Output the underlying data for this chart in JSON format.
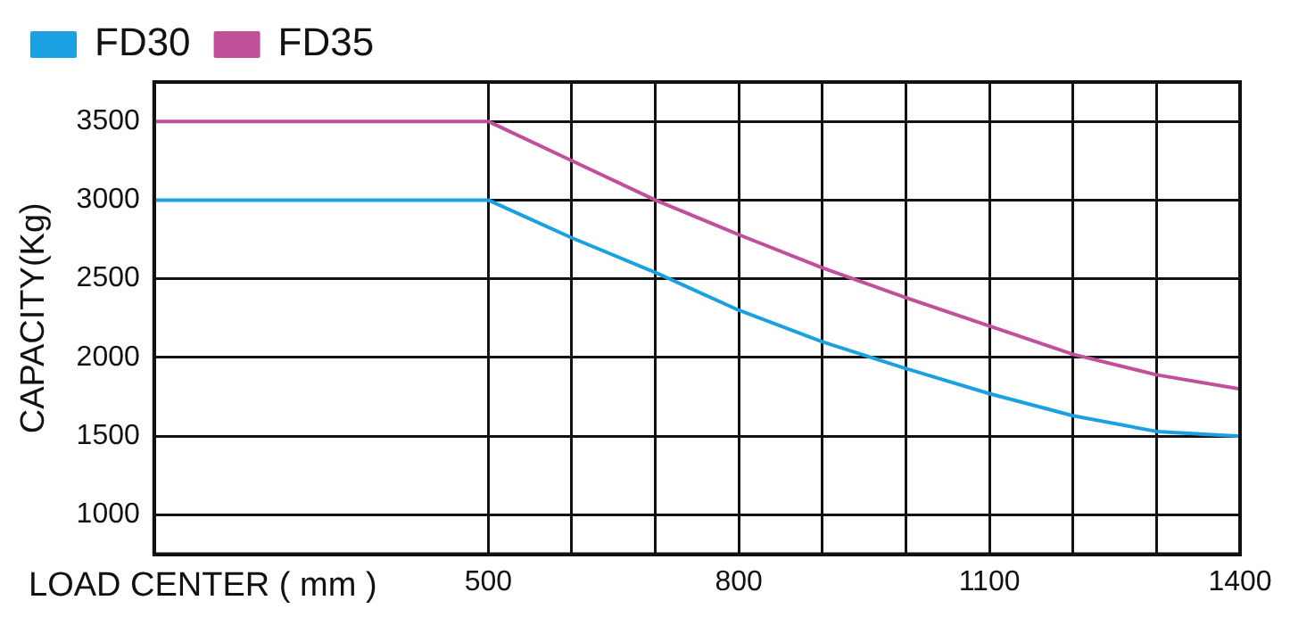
{
  "chart_data": {
    "type": "line",
    "xlabel": "LOAD CENTER ( mm )",
    "ylabel": "CAPACITY(Kg)",
    "x": [
      100,
      500,
      600,
      700,
      800,
      900,
      1000,
      1100,
      1200,
      1300,
      1400
    ],
    "series": [
      {
        "name": "FD30",
        "color": "#1ba1e2",
        "values": [
          3000,
          3000,
          2760,
          2540,
          2300,
          2100,
          1930,
          1770,
          1630,
          1530,
          1500
        ]
      },
      {
        "name": "FD35",
        "color": "#c0509a",
        "values": [
          3500,
          3500,
          3250,
          3000,
          2780,
          2570,
          2380,
          2200,
          2020,
          1890,
          1800
        ]
      }
    ],
    "xlim": [
      100,
      1400
    ],
    "xticks": [
      500,
      {
        "value": 600,
        "label": null
      },
      {
        "value": 700,
        "label": null
      },
      800,
      {
        "value": 900,
        "label": null
      },
      {
        "value": 1000,
        "label": null
      },
      1100,
      {
        "value": 1200,
        "label": null
      },
      {
        "value": 1300,
        "label": null
      },
      1400
    ],
    "ylim": [
      750,
      3750
    ],
    "yticks": [
      1000,
      1500,
      2000,
      2500,
      3000,
      3500
    ],
    "grid": true,
    "legend": "top left",
    "marker": "none",
    "line_style": "solid"
  }
}
